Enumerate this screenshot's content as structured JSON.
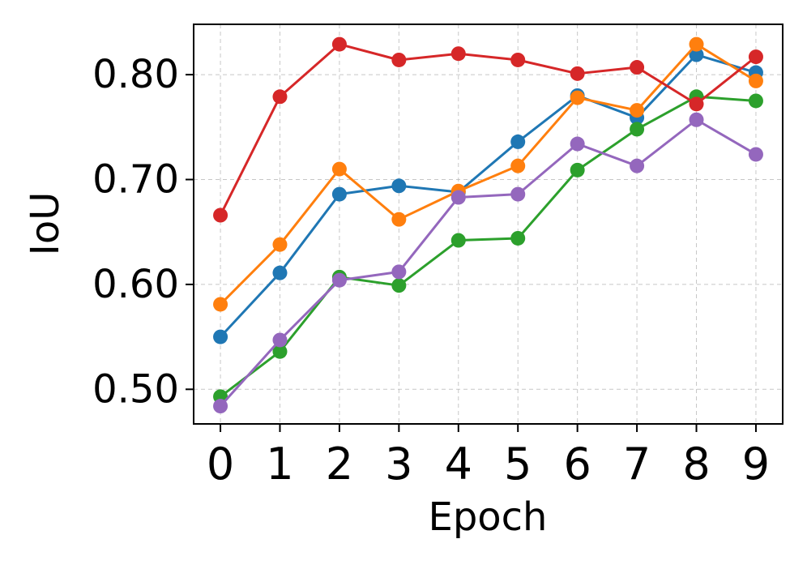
{
  "chart_data": {
    "type": "line",
    "title": "",
    "xlabel": "Epoch",
    "ylabel": "IoU",
    "x": [
      0,
      1,
      2,
      3,
      4,
      5,
      6,
      7,
      8,
      9
    ],
    "xlim": [
      -0.45,
      9.45
    ],
    "ylim": [
      0.467,
      0.848
    ],
    "yticks": [
      0.5,
      0.6,
      0.7,
      0.8
    ],
    "ytick_labels": [
      "0.50",
      "0.60",
      "0.70",
      "0.80"
    ],
    "xtick_labels": [
      "0",
      "1",
      "2",
      "3",
      "4",
      "5",
      "6",
      "7",
      "8",
      "9"
    ],
    "grid": true,
    "legend": "none",
    "series": [
      {
        "color": "#1f77b4",
        "values": [
          0.55,
          0.611,
          0.686,
          0.694,
          0.688,
          0.736,
          0.78,
          0.759,
          0.819,
          0.802
        ]
      },
      {
        "color": "#ff7f0e",
        "values": [
          0.581,
          0.638,
          0.71,
          0.662,
          0.689,
          0.713,
          0.778,
          0.766,
          0.829,
          0.794
        ]
      },
      {
        "color": "#2ca02c",
        "values": [
          0.493,
          0.536,
          0.607,
          0.599,
          0.642,
          0.644,
          0.709,
          0.748,
          0.779,
          0.775
        ]
      },
      {
        "color": "#d62728",
        "values": [
          0.666,
          0.779,
          0.829,
          0.814,
          0.82,
          0.814,
          0.801,
          0.807,
          0.772,
          0.817
        ]
      },
      {
        "color": "#9467bd",
        "values": [
          0.484,
          0.547,
          0.604,
          0.612,
          0.683,
          0.686,
          0.734,
          0.713,
          0.757,
          0.724
        ]
      }
    ]
  }
}
